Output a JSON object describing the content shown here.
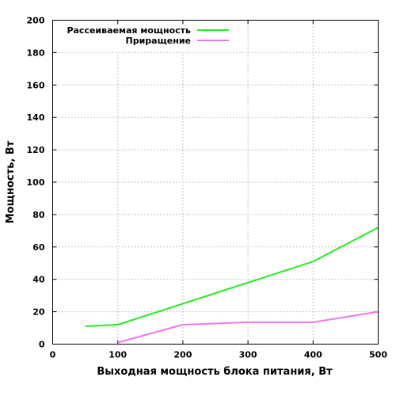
{
  "chart_data": {
    "type": "line",
    "title": "",
    "xlabel": "Выходная мощность блока питания, Вт",
    "ylabel": "Мощность, Вт",
    "xlim": [
      0,
      500
    ],
    "ylim": [
      0,
      200
    ],
    "xticks": [
      0,
      100,
      200,
      300,
      400,
      500
    ],
    "yticks": [
      0,
      20,
      40,
      60,
      80,
      100,
      120,
      140,
      160,
      180,
      200
    ],
    "grid": true,
    "legend_position": "top-left",
    "series": [
      {
        "name": "Рассеиваемая мощность",
        "color": "#22ee22",
        "x": [
          50,
          100,
          200,
          300,
          400,
          500
        ],
        "y": [
          11,
          12,
          25,
          38,
          51,
          72
        ]
      },
      {
        "name": "Приращение",
        "color": "#ee77ee",
        "x": [
          100,
          200,
          300,
          400,
          500
        ],
        "y": [
          1,
          12,
          13.5,
          13.5,
          20
        ]
      }
    ]
  }
}
